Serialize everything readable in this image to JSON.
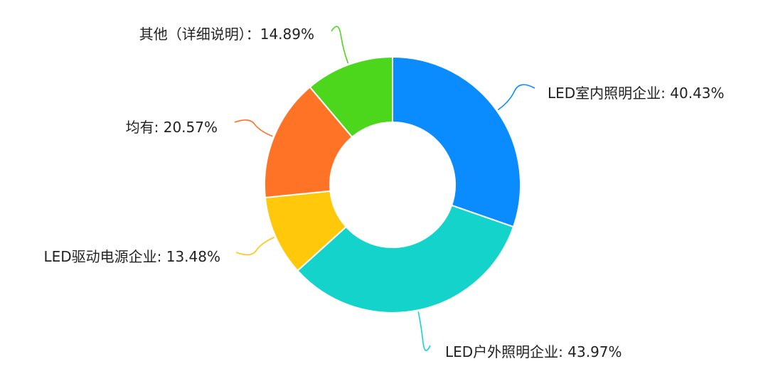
{
  "chart_data": {
    "type": "pie",
    "variant": "donut",
    "title": "",
    "series": [
      {
        "name": "",
        "slices": [
          {
            "label": "LED室内照明企业",
            "value": 40.43,
            "display": "40.43%",
            "color": "#0a8cff"
          },
          {
            "label": "LED户外照明企业",
            "value": 43.97,
            "display": "43.97%",
            "color": "#13d3cb"
          },
          {
            "label": "LED驱动电源企业",
            "value": 13.48,
            "display": "13.48%",
            "color": "#ffc80a"
          },
          {
            "label": "均有",
            "value": 20.57,
            "display": "20.57%",
            "color": "#ff7326"
          },
          {
            "label": "其他（详细说明）",
            "value": 14.89,
            "display": "14.89%",
            "color": "#4cd61c"
          }
        ]
      }
    ],
    "label_separator": {
      "LED室内照明企业": ": ",
      "LED户外照明企业": ": ",
      "LED驱动电源企业": ": ",
      "均有": ": ",
      "其他（详细说明）": "：",
      "_fallback": ": "
    },
    "legend": "none",
    "grid": false
  }
}
